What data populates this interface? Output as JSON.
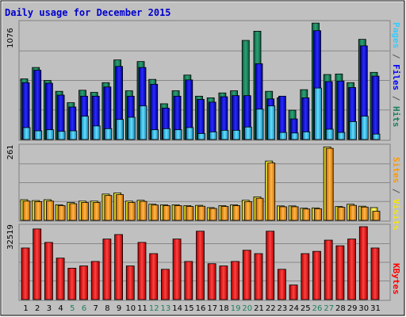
{
  "chart_data": {
    "type": "bar",
    "title": "Daily usage for December 2015",
    "categories": [
      "1",
      "2",
      "3",
      "4",
      "5",
      "6",
      "7",
      "8",
      "9",
      "10",
      "11",
      "12",
      "13",
      "14",
      "15",
      "16",
      "17",
      "18",
      "19",
      "20",
      "21",
      "22",
      "23",
      "24",
      "25",
      "26",
      "27",
      "28",
      "29",
      "30",
      "31"
    ],
    "weekend_days": [
      "5",
      "6",
      "12",
      "13",
      "19",
      "20",
      "26",
      "27"
    ],
    "panels": [
      {
        "name": "hits-files-pages",
        "ymax": 1076,
        "ymax_label": "1076",
        "side_labels": [
          {
            "text": "Pages",
            "color": "#33ccff"
          },
          {
            "text": " / ",
            "color": "#555555"
          },
          {
            "text": "Files",
            "color": "#0000ff"
          },
          {
            "text": " / ",
            "color": "#555555"
          },
          {
            "text": "Hits",
            "color": "#1d7f5b"
          }
        ],
        "series": [
          {
            "name": "Hits",
            "color": "#1d7f5b",
            "values": [
              560,
              665,
              545,
              445,
              340,
              455,
              435,
              525,
              735,
              450,
              720,
              555,
              330,
              450,
              595,
              400,
              385,
              430,
              450,
              915,
              1000,
              445,
              385,
              270,
              460,
              1075,
              600,
              605,
              525,
              925,
              620
            ]
          },
          {
            "name": "Files",
            "color": "#0000ff",
            "values": [
              525,
              640,
              520,
              410,
              300,
              400,
              400,
              485,
              675,
              400,
              665,
              510,
              290,
              400,
              550,
              370,
              345,
              395,
              405,
              405,
              700,
              375,
              400,
              190,
              385,
              1005,
              535,
              540,
              480,
              865,
              585
            ]
          },
          {
            "name": "Pages",
            "color": "#33ccff",
            "values": [
              110,
              80,
              90,
              75,
              80,
              215,
              125,
              100,
              185,
              205,
              310,
              90,
              100,
              90,
              110,
              55,
              70,
              85,
              85,
              115,
              280,
              310,
              65,
              60,
              70,
              475,
              95,
              65,
              165,
              215,
              50
            ]
          }
        ]
      },
      {
        "name": "visits-sites",
        "ymax": 261,
        "ymax_label": "261",
        "side_labels": [
          {
            "text": "Sites",
            "color": "#ff9900"
          },
          {
            "text": " / ",
            "color": "#555555"
          },
          {
            "text": "Visits",
            "color": "#f5e600"
          }
        ],
        "series": [
          {
            "name": "Visits",
            "color": "#ffff33",
            "values": [
              73,
              70,
              73,
              55,
              63,
              68,
              68,
              93,
              97,
              68,
              71,
              57,
              55,
              55,
              52,
              53,
              45,
              52,
              55,
              71,
              83,
              210,
              51,
              51,
              43,
              44,
              260,
              49,
              57,
              50,
              45
            ]
          },
          {
            "name": "Sites",
            "color": "#ff9900",
            "values": [
              68,
              66,
              68,
              52,
              59,
              63,
              63,
              88,
              91,
              63,
              67,
              54,
              52,
              52,
              49,
              50,
              42,
              49,
              52,
              66,
              78,
              203,
              48,
              48,
              40,
              41,
              255,
              46,
              53,
              47,
              32
            ]
          }
        ]
      },
      {
        "name": "kbytes",
        "ymax": 32519,
        "ymax_label": "32519",
        "side_labels": [
          {
            "text": "KBytes",
            "color": "#ff0000"
          }
        ],
        "series": [
          {
            "name": "KBytes",
            "color": "#ff0000",
            "values": [
              23000,
              31500,
              25500,
              18500,
              14000,
              15000,
              17000,
              27000,
              29000,
              15000,
              25500,
              20500,
              13500,
              27000,
              17000,
              30500,
              16000,
              15000,
              17000,
              22000,
              20500,
              30500,
              13500,
              6500,
              20500,
              21500,
              26500,
              24000,
              27000,
              32519,
              23000
            ]
          }
        ]
      }
    ]
  }
}
